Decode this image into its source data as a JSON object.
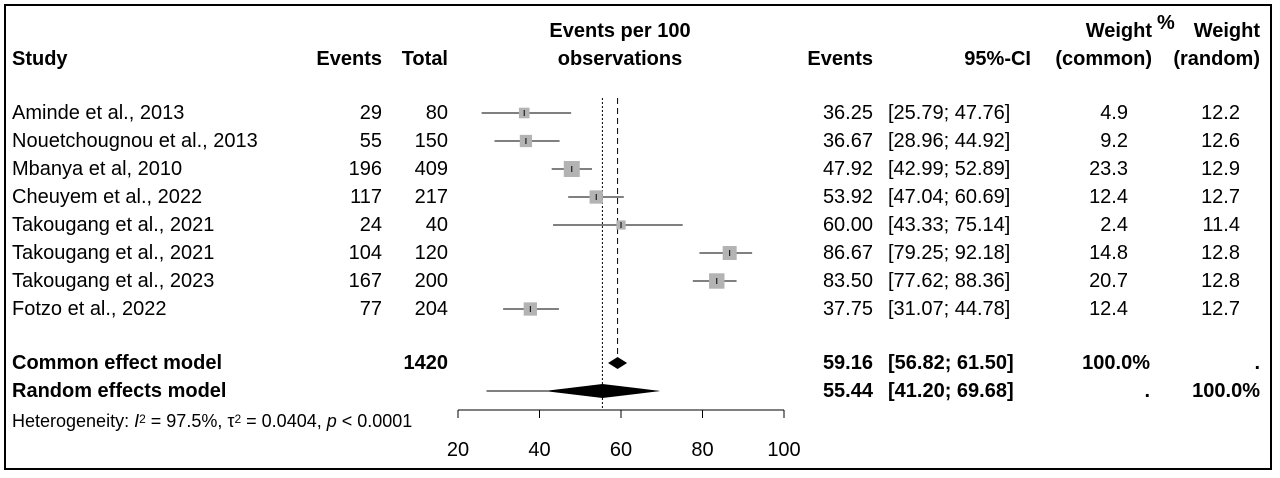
{
  "chart_data": {
    "type": "forest",
    "headers": {
      "study": "Study",
      "events": "Events",
      "total": "Total",
      "axis_line1": "Events per 100",
      "axis_line2": "observations",
      "est": "Events",
      "ci": "95%-CI",
      "wc_line1": "Weight",
      "wc_line2": "(common)",
      "pct": "%",
      "wr_line1": "Weight",
      "wr_line2": "(random)"
    },
    "studies": [
      {
        "study": "Aminde et al., 2013",
        "events": "29",
        "total": "80",
        "est": 36.25,
        "lo": 25.79,
        "hi": 47.76,
        "est_label": "36.25",
        "ci_label": "[25.79; 47.76]",
        "w_common": "4.9",
        "w_random": "12.2"
      },
      {
        "study": "Nouetchougnou et al., 2013",
        "events": "55",
        "total": "150",
        "est": 36.67,
        "lo": 28.96,
        "hi": 44.92,
        "est_label": "36.67",
        "ci_label": "[28.96; 44.92]",
        "w_common": "9.2",
        "w_random": "12.6"
      },
      {
        "study": "Mbanya et al, 2010",
        "events": "196",
        "total": "409",
        "est": 47.92,
        "lo": 42.99,
        "hi": 52.89,
        "est_label": "47.92",
        "ci_label": "[42.99; 52.89]",
        "w_common": "23.3",
        "w_random": "12.9"
      },
      {
        "study": "Cheuyem et al., 2022",
        "events": "117",
        "total": "217",
        "est": 53.92,
        "lo": 47.04,
        "hi": 60.69,
        "est_label": "53.92",
        "ci_label": "[47.04; 60.69]",
        "w_common": "12.4",
        "w_random": "12.7"
      },
      {
        "study": "Takougang et al., 2021",
        "events": "24",
        "total": "40",
        "est": 60.0,
        "lo": 43.33,
        "hi": 75.14,
        "est_label": "60.00",
        "ci_label": "[43.33; 75.14]",
        "w_common": "2.4",
        "w_random": "11.4"
      },
      {
        "study": "Takougang et al., 2021",
        "events": "104",
        "total": "120",
        "est": 86.67,
        "lo": 79.25,
        "hi": 92.18,
        "est_label": "86.67",
        "ci_label": "[79.25; 92.18]",
        "w_common": "14.8",
        "w_random": "12.8"
      },
      {
        "study": "Takougang et al., 2023",
        "events": "167",
        "total": "200",
        "est": 83.5,
        "lo": 77.62,
        "hi": 88.36,
        "est_label": "83.50",
        "ci_label": "[77.62; 88.36]",
        "w_common": "20.7",
        "w_random": "12.8"
      },
      {
        "study": "Fotzo et al., 2022",
        "events": "77",
        "total": "204",
        "est": 37.75,
        "lo": 31.07,
        "hi": 44.78,
        "est_label": "37.75",
        "ci_label": "[31.07; 44.78]",
        "w_common": "12.4",
        "w_random": "12.7"
      }
    ],
    "common": {
      "label": "Common effect model",
      "total": "1420",
      "est": 59.16,
      "lo": 56.82,
      "hi": 61.5,
      "est_label": "59.16",
      "ci_label": "[56.82; 61.50]",
      "w_common": "100.0%",
      "w_random": "."
    },
    "random": {
      "label": "Random effects model",
      "est": 55.44,
      "lo": 41.2,
      "hi": 69.68,
      "pred_lo": 27,
      "pred_hi": 69,
      "est_label": "55.44",
      "ci_label": "[41.20; 69.68]",
      "w_common": ".",
      "w_random": "100.0%"
    },
    "heterogeneity": {
      "prefix": "Heterogeneity: ",
      "i_symbol": "I",
      "i_exp": "2",
      "i_value": " = 97.5%, ",
      "tau_symbol": "τ",
      "tau_exp": "2",
      "tau_value": " = 0.0404, ",
      "p_symbol": "p",
      "p_value": " < 0.0001"
    },
    "xlim": [
      20,
      100
    ],
    "xticks": [
      20,
      40,
      60,
      80,
      100
    ],
    "xtick_labels": [
      "20",
      "40",
      "60",
      "80",
      "100"
    ]
  }
}
